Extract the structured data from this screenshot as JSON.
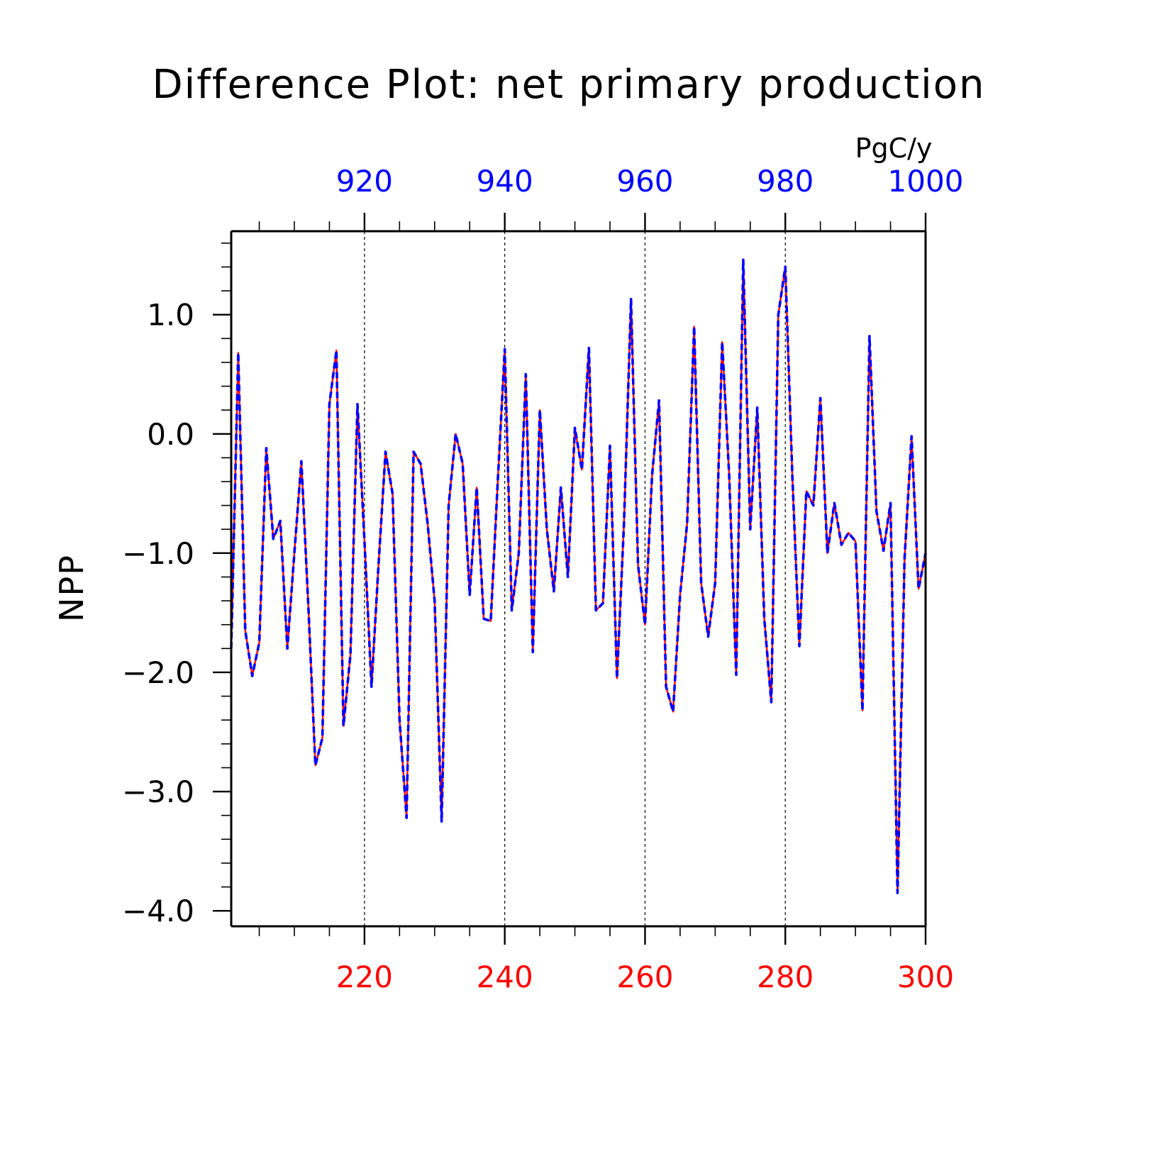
{
  "chart_data": {
    "type": "line",
    "title": "Difference Plot: net primary production",
    "units": "PgC/y",
    "ylabel": "NPP",
    "xlabel": "",
    "ylim": [
      -4.13,
      1.7
    ],
    "yticks": [
      1.0,
      0.0,
      -1.0,
      -2.0,
      -3.0,
      -4.0
    ],
    "ytick_labels": [
      "1.0",
      "0.0",
      "−1.0",
      "−2.0",
      "−3.0",
      "−4.0"
    ],
    "x_bottom": {
      "range": [
        201,
        300
      ],
      "ticks": [
        220,
        240,
        260,
        280,
        300
      ],
      "tick_labels": [
        "220",
        "240",
        "260",
        "280",
        "300"
      ],
      "color": "#ff0000"
    },
    "x_top": {
      "range": [
        901,
        1000
      ],
      "ticks": [
        920,
        940,
        960,
        980,
        1000
      ],
      "tick_labels": [
        "920",
        "940",
        "960",
        "980",
        "1000"
      ],
      "color": "#0000ff"
    },
    "grid": "vertical dashed at major ticks",
    "series": [
      {
        "color": "#ff0000",
        "style": "solid",
        "axis": "bottom",
        "x_start": 201,
        "values": [
          -1.8,
          0.68,
          -1.65,
          -2.03,
          -1.75,
          -0.12,
          -0.88,
          -0.73,
          -1.8,
          -1.0,
          -0.23,
          -1.45,
          -2.78,
          -2.55,
          0.25,
          0.7,
          -2.45,
          -1.85,
          0.25,
          -0.9,
          -2.12,
          -1.1,
          -0.15,
          -0.5,
          -2.4,
          -3.22,
          -0.15,
          -0.25,
          -0.75,
          -1.4,
          -3.25,
          -0.6,
          0.0,
          -0.25,
          -1.35,
          -0.45,
          -1.55,
          -1.57,
          -0.4,
          0.71,
          -1.48,
          -1.0,
          0.5,
          -1.83,
          0.2,
          -0.8,
          -1.32,
          -0.45,
          -1.2,
          0.05,
          -0.3,
          0.72,
          -1.48,
          -1.42,
          -0.1,
          -2.05,
          -0.75,
          1.13,
          -1.1,
          -1.6,
          -0.35,
          0.28,
          -2.12,
          -2.33,
          -1.35,
          -0.75,
          0.9,
          -1.25,
          -1.7,
          -1.25,
          0.77,
          -0.35,
          -2.02,
          1.46,
          -0.8,
          0.22,
          -1.55,
          -2.25,
          1.0,
          1.4,
          -0.35,
          -1.78,
          -0.48,
          -0.6,
          0.3,
          -1.0,
          -0.58,
          -0.93,
          -0.83,
          -0.9,
          -2.32,
          0.82,
          -0.65,
          -0.98,
          -0.58,
          -3.85,
          -1.05,
          -0.02,
          -1.3,
          -1.0
        ]
      },
      {
        "color": "#0000ff",
        "style": "dashed",
        "axis": "top",
        "x_start": 901,
        "values": [
          -1.8,
          0.68,
          -1.65,
          -2.03,
          -1.75,
          -0.12,
          -0.88,
          -0.73,
          -1.8,
          -1.0,
          -0.23,
          -1.45,
          -2.78,
          -2.55,
          0.25,
          0.7,
          -2.45,
          -1.85,
          0.25,
          -0.9,
          -2.12,
          -1.1,
          -0.15,
          -0.5,
          -2.4,
          -3.22,
          -0.15,
          -0.25,
          -0.75,
          -1.4,
          -3.25,
          -0.6,
          0.0,
          -0.25,
          -1.35,
          -0.45,
          -1.55,
          -1.57,
          -0.4,
          0.71,
          -1.48,
          -1.0,
          0.5,
          -1.83,
          0.2,
          -0.8,
          -1.32,
          -0.45,
          -1.2,
          0.05,
          -0.3,
          0.72,
          -1.48,
          -1.42,
          -0.1,
          -2.05,
          -0.75,
          1.13,
          -1.1,
          -1.6,
          -0.35,
          0.28,
          -2.12,
          -2.33,
          -1.35,
          -0.75,
          0.9,
          -1.25,
          -1.7,
          -1.25,
          0.77,
          -0.35,
          -2.02,
          1.46,
          -0.8,
          0.22,
          -1.55,
          -2.25,
          1.0,
          1.4,
          -0.35,
          -1.78,
          -0.48,
          -0.6,
          0.3,
          -1.0,
          -0.58,
          -0.93,
          -0.83,
          -0.9,
          -2.32,
          0.82,
          -0.65,
          -0.98,
          -0.58,
          -3.85,
          -1.05,
          -0.02,
          -1.3,
          -1.0
        ]
      }
    ]
  }
}
